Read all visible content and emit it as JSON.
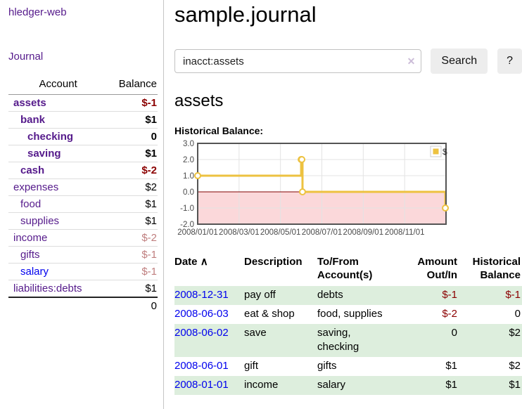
{
  "app": {
    "title": "hledger-web"
  },
  "sidebar": {
    "journal_link": "Journal",
    "accounts_table": {
      "headers": {
        "account": "Account",
        "balance": "Balance"
      },
      "rows": [
        {
          "label": "assets",
          "indent": 0,
          "bold": true,
          "balance": "$-1",
          "balance_class": "strong-neg"
        },
        {
          "label": "bank",
          "indent": 1,
          "bold": true,
          "balance": "$1",
          "balance_class": "normal"
        },
        {
          "label": "checking",
          "indent": 2,
          "bold": true,
          "balance": "0",
          "balance_class": "normal"
        },
        {
          "label": "saving",
          "indent": 2,
          "bold": true,
          "balance": "$1",
          "balance_class": "normal"
        },
        {
          "label": "cash",
          "indent": 1,
          "bold": true,
          "balance": "$-2",
          "balance_class": "strong-neg"
        },
        {
          "label": "expenses",
          "indent": 0,
          "bold": false,
          "balance": "$2",
          "balance_class": "normal"
        },
        {
          "label": "food",
          "indent": 1,
          "bold": false,
          "balance": "$1",
          "balance_class": "normal"
        },
        {
          "label": "supplies",
          "indent": 1,
          "bold": false,
          "balance": "$1",
          "balance_class": "normal"
        },
        {
          "label": "income",
          "indent": 0,
          "bold": false,
          "balance": "$-2",
          "balance_class": "soft-neg"
        },
        {
          "label": "gifts",
          "indent": 1,
          "bold": false,
          "balance": "$-1",
          "balance_class": "soft-neg"
        },
        {
          "label": "salary",
          "indent": 1,
          "bold": false,
          "link_color": "#0000ee",
          "balance": "$-1",
          "balance_class": "soft-neg"
        },
        {
          "label": "liabilities:debts",
          "indent": 0,
          "bold": false,
          "balance": "$1",
          "balance_class": "normal"
        }
      ],
      "total": "0"
    }
  },
  "main": {
    "page_title": "sample.journal",
    "search": {
      "value": "inacct:assets",
      "clear_icon": "✕",
      "button_label": "Search",
      "help_label": "?"
    },
    "account_heading": "assets",
    "chart_label": "Historical Balance:"
  },
  "chart_data": {
    "type": "line",
    "title": "Historical Balance:",
    "step": true,
    "series": [
      {
        "name": "$",
        "color": "#EDC240",
        "points": [
          [
            "2008-01-01",
            1
          ],
          [
            "2008-06-01",
            2
          ],
          [
            "2008-06-02",
            2
          ],
          [
            "2008-06-03",
            0
          ],
          [
            "2008-12-31",
            -1
          ]
        ]
      }
    ],
    "xlim": [
      "2008-01-01",
      "2009-01-01"
    ],
    "ylim": [
      -2,
      3
    ],
    "yticks": [
      "3.0",
      "2.0",
      "1.0",
      "0.0",
      "-1.0",
      "-2.0"
    ],
    "xticks": [
      "2008/01/01",
      "2008/03/01",
      "2008/05/01",
      "2008/07/01",
      "2008/09/01",
      "2008/11/01"
    ],
    "grid": true,
    "negative_fill": "#fbd8da",
    "zero_line_color": "#800000",
    "border_color": "#545454",
    "legend": {
      "label": "$",
      "position": "top-right"
    }
  },
  "register": {
    "columns": [
      "Date",
      "Description",
      "To/From Account(s)",
      "Amount Out/In",
      "Historical Balance"
    ],
    "sort_icon": "∧",
    "rows": [
      {
        "date": "2008-12-31",
        "description": "pay off",
        "accounts": "debts",
        "amount": "$-1",
        "amount_class": "neg",
        "balance": "$-1",
        "balance_class": "neg",
        "stripe": true
      },
      {
        "date": "2008-06-03",
        "description": "eat & shop",
        "accounts": "food, supplies",
        "amount": "$-2",
        "amount_class": "neg",
        "balance": "0",
        "balance_class": "normal",
        "stripe": false
      },
      {
        "date": "2008-06-02",
        "description": "save",
        "accounts": "saving,\nchecking",
        "amount": "0",
        "amount_class": "normal",
        "balance": "$2",
        "balance_class": "normal",
        "stripe": true
      },
      {
        "date": "2008-06-01",
        "description": "gift",
        "accounts": "gifts",
        "amount": "$1",
        "amount_class": "normal",
        "balance": "$2",
        "balance_class": "normal",
        "stripe": false
      },
      {
        "date": "2008-01-01",
        "description": "income",
        "accounts": "salary",
        "amount": "$1",
        "amount_class": "normal",
        "balance": "$1",
        "balance_class": "normal",
        "stripe": true
      }
    ]
  },
  "colors": {
    "link_purple": "#551a8b",
    "link_blue": "#0000ee",
    "negative_strong": "#8b0000",
    "negative_soft": "#bf7e7e",
    "row_stripe_green": "#ddeedd",
    "chart_gold": "#EDC240"
  }
}
